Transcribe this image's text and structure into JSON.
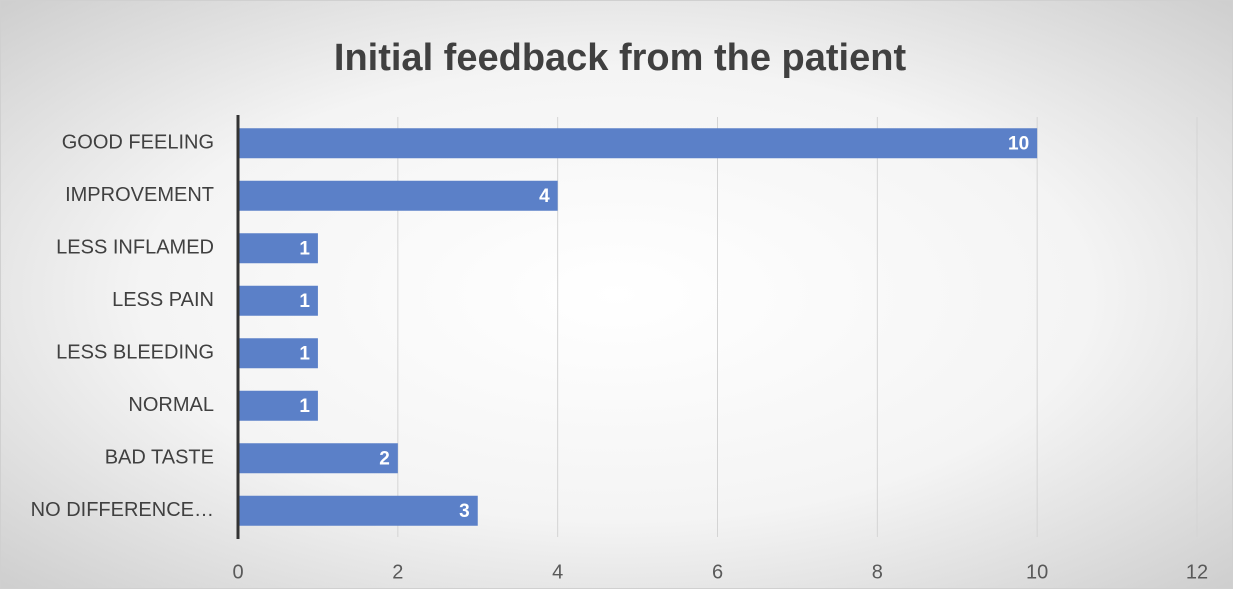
{
  "chart_data": {
    "type": "bar",
    "orientation": "horizontal",
    "title": "Initial feedback from the patient",
    "categories": [
      "GOOD FEELING",
      "IMPROVEMENT",
      "LESS INFLAMED",
      "LESS PAIN",
      "LESS BLEEDING",
      "NORMAL",
      "BAD TASTE",
      "NO DIFFERENCE…"
    ],
    "values": [
      10,
      4,
      1,
      1,
      1,
      1,
      2,
      3
    ],
    "color": "#5b80c8",
    "xlim": [
      0,
      12
    ],
    "xticks": [
      0,
      2,
      4,
      6,
      8,
      10,
      12
    ],
    "grid": true
  }
}
